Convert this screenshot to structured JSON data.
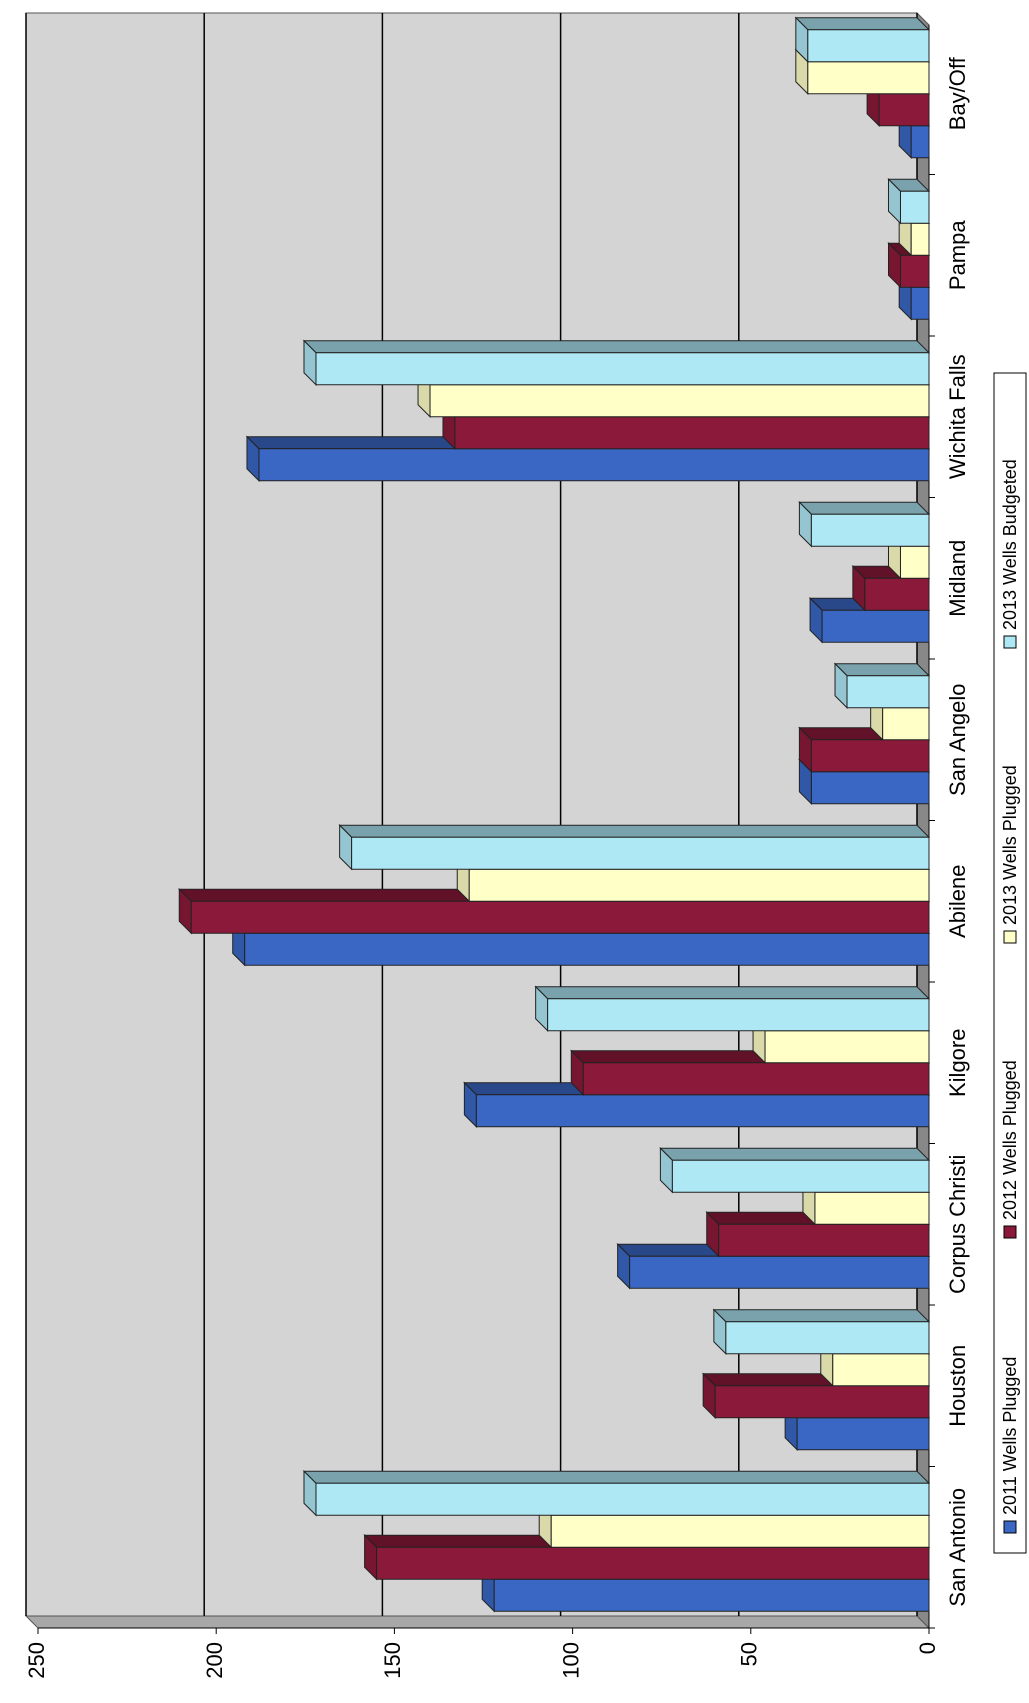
{
  "chart_data": {
    "type": "bar3d",
    "categories": [
      "San Antonio",
      "Houston",
      "Corpus Christi",
      "Kilgore",
      "Abilene",
      "San Angelo",
      "Midland",
      "Wichita Falls",
      "Pampa",
      "Bay/Off"
    ],
    "series": [
      {
        "name": "2011 Wells Plugged",
        "color": "#3a67c4",
        "values": [
          122,
          37,
          84,
          127,
          192,
          33,
          30,
          188,
          5,
          5
        ]
      },
      {
        "name": "2012 Wells Plugged",
        "color": "#8b1a3a",
        "values": [
          155,
          60,
          59,
          97,
          207,
          33,
          18,
          133,
          8,
          14
        ]
      },
      {
        "name": "2013 Wells Plugged",
        "color": "#ffffc8",
        "values": [
          106,
          27,
          32,
          46,
          129,
          13,
          8,
          140,
          5,
          34
        ]
      },
      {
        "name": "2013 Wells Budgeted",
        "color": "#aee8f5",
        "values": [
          172,
          57,
          72,
          107,
          162,
          23,
          33,
          172,
          8,
          34
        ]
      }
    ],
    "ylim": [
      0,
      250
    ],
    "yticks": [
      0,
      50,
      100,
      150,
      200,
      250
    ],
    "grid": true,
    "legend": "bottom"
  }
}
